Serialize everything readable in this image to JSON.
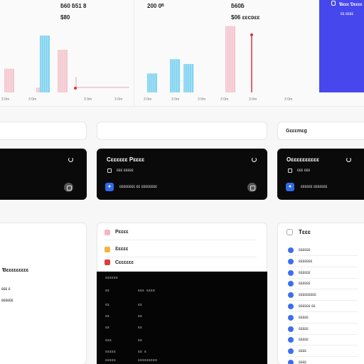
{
  "top_charts": [
    {
      "stat": "ƃ60 ƃ51 8",
      "sub": "$80",
      "ticks": [
        "3 0m",
        "3 0m",
        "3 0m"
      ]
    },
    {
      "stat": "200 0ᴮ",
      "sub": "",
      "ticks": [
        "3 0m",
        "3 0m",
        "3 0m"
      ]
    },
    {
      "stat": "ƃ60ƃ",
      "sub": "$06 ɛɛcᴅɛɛ",
      "ticks": [
        "3 0m",
        "3 0m",
        "3 0m"
      ]
    }
  ],
  "blue_card": {
    "title": "Ɓɛɛɛ Ɗɛɛɛɛ",
    "subtitle": "ɛɛ ɛɛɛɛ"
  },
  "filter": {
    "label": "Gɛɛɛmɛg"
  },
  "dark_cards": [
    {
      "title": "",
      "sub": "",
      "meta": ""
    },
    {
      "title": "Cɛɛɛɛɛɛ Pɛɛɛɛ",
      "sub": "ɛɛɛ ɛɛɛɛɛ",
      "meta": "ɛɛɛɛɛɛɛɛ ɛɛ ɛɛɛɛɛɛɛɛ"
    },
    {
      "title": "Oɛɛɛɛɛɛɛɛɛɛ",
      "sub": "ɛɛɛ ɛɛɛ",
      "meta": "ɛɛɛɛɛɛ ɛɛɛɛɛɛɛ"
    }
  ],
  "left_panel": {
    "l1": "Ɓɛɛɛɛɛɛɛɛɛ",
    "l2": "ɛɛɛ ɛ",
    "l3": "ɛɛɛɛɛɛ"
  },
  "mid_panel": {
    "rows": [
      {
        "label": "Pɛɛɛɛ",
        "color": "#f6b4c2"
      },
      {
        "label": "Ɛɛɛɛɛ",
        "color": "#f4b340"
      },
      {
        "label": "Cɛɛɛɛɛɛ",
        "color": "#e03b3b"
      }
    ]
  },
  "terminal": {
    "header": "ɛɛɛɛɛɛ",
    "lines": [
      [
        "ɛɛ",
        "ɛɛɛ ɛɛɛɛ"
      ],
      [
        "ɛɛ",
        "ɛɛ"
      ],
      [
        "ɛɛ",
        "ɛɛ"
      ],
      [
        "ɛɛ",
        "ɛɛ"
      ],
      [
        "ɛɛɛ",
        "ɛɛ"
      ],
      [
        "ɛɛɛɛɛ",
        "ɛɛ ɛ"
      ],
      [
        "ɛɛɛɛɛ",
        "ɛɛɛɛɛɛɛɛɛ"
      ]
    ]
  },
  "right_panel": {
    "title": "Tɛɛɛ",
    "items": [
      "ɛɛɛɛɛɛ",
      "ɛɛɛɛɛɛɛ",
      "ɛɛɛɛɛɛ",
      "ɛɛɛɛɛɛ",
      "ɛɛɛɛɛɛɛɛɛ",
      "ɛɛɛɛɛɛ ɛɛ",
      "ɛɛɛɛɛ",
      "ɛɛɛɛɛ",
      "ɛɛɛɛɛ",
      "ɛɛɛɛ",
      "ɛɛɛɛ"
    ]
  },
  "colors": {
    "accent_blue": "#4747ee",
    "bar_cyan": "#7fd3f0",
    "bar_pink": "#f4c6cf",
    "marker_red": "#d9343c"
  },
  "chart_data": [
    {
      "type": "bar",
      "title": "",
      "series": [
        {
          "values": [
            5,
            0,
            0,
            0,
            0,
            0,
            0,
            0,
            0,
            1,
            12,
            0,
            0,
            0,
            0,
            9,
            0
          ]
        }
      ],
      "marker_x": 107,
      "ylim": [
        0,
        15
      ]
    },
    {
      "type": "bar",
      "title": "",
      "series": [
        {
          "values": [
            4,
            0,
            0,
            0,
            0,
            7,
            0,
            0,
            6
          ]
        }
      ],
      "ylim": [
        0,
        15
      ]
    },
    {
      "type": "bar",
      "title": "",
      "series": [
        {
          "values": [
            14,
            13
          ]
        }
      ],
      "ylim": [
        0,
        15
      ]
    }
  ]
}
